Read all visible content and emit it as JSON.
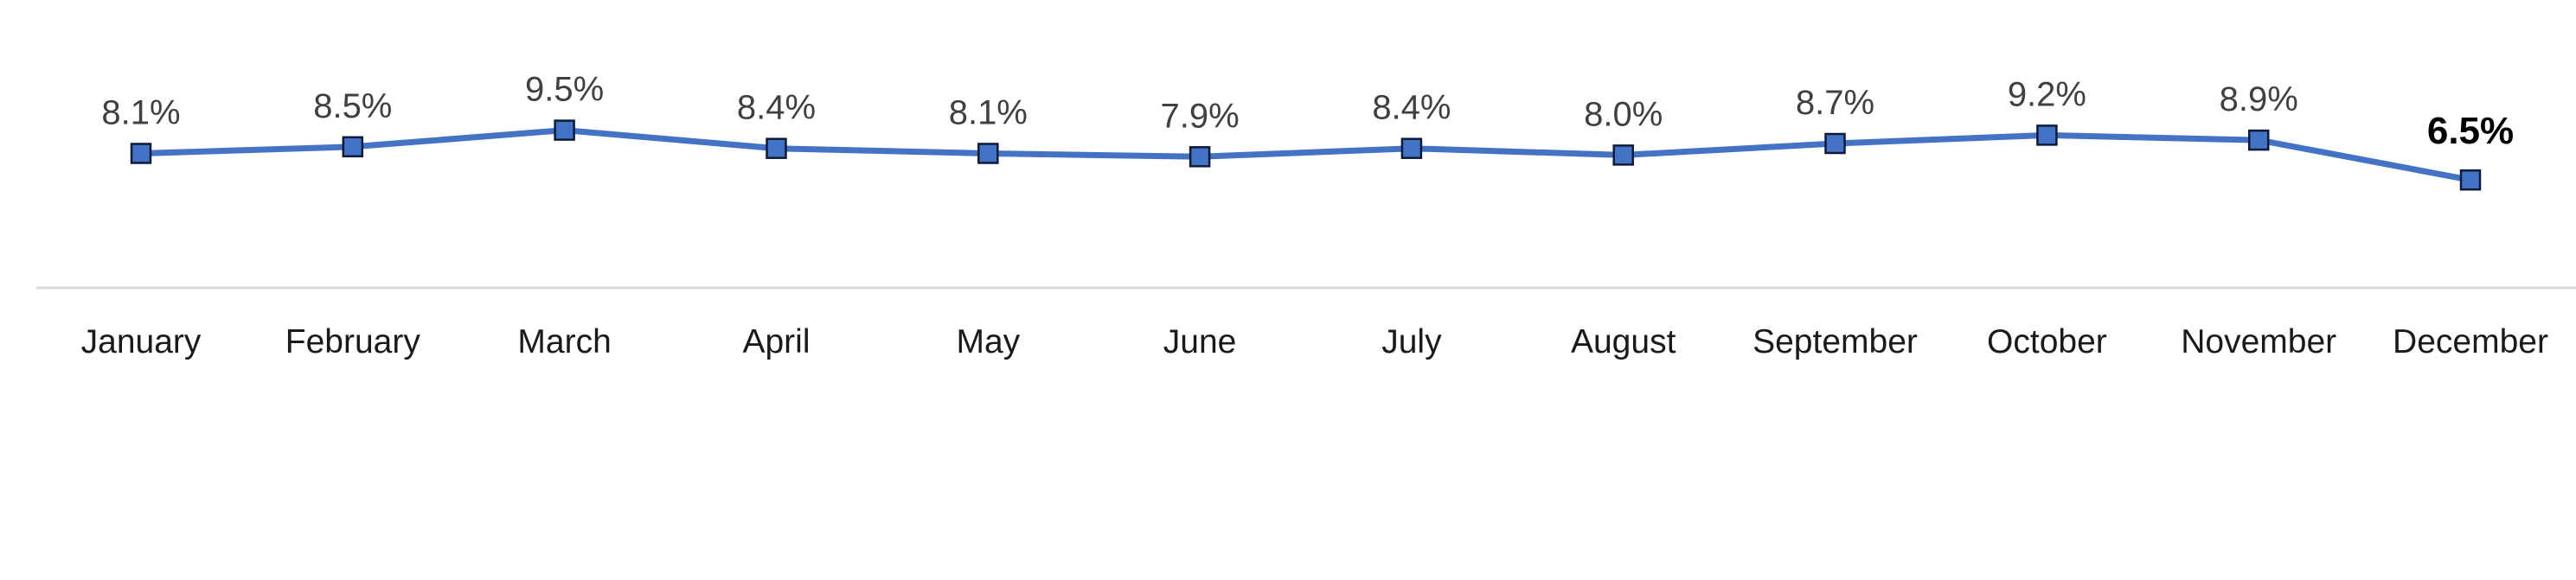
{
  "chart_data": {
    "type": "line",
    "title": "",
    "xlabel": "",
    "ylabel": "",
    "categories": [
      "January",
      "February",
      "March",
      "April",
      "May",
      "June",
      "July",
      "August",
      "September",
      "October",
      "November",
      "December"
    ],
    "series": [
      {
        "values": [
          8.1,
          8.5,
          9.5,
          8.4,
          8.1,
          7.9,
          8.4,
          8.0,
          8.7,
          9.2,
          8.9,
          6.5
        ],
        "data_labels": [
          "8.1%",
          "8.5%",
          "9.5%",
          "8.4%",
          "8.1%",
          "7.9%",
          "8.4%",
          "8.0%",
          "8.7%",
          "9.2%",
          "8.9%",
          "6.5%"
        ],
        "highlight_index": 11,
        "color": "#4472C4",
        "marker": "square",
        "marker_edge_color": "#0d1b3a"
      }
    ],
    "ylim": [
      0,
      16
    ],
    "grid": false,
    "axis_line_color": "#d9d9d9",
    "legend": "none"
  }
}
